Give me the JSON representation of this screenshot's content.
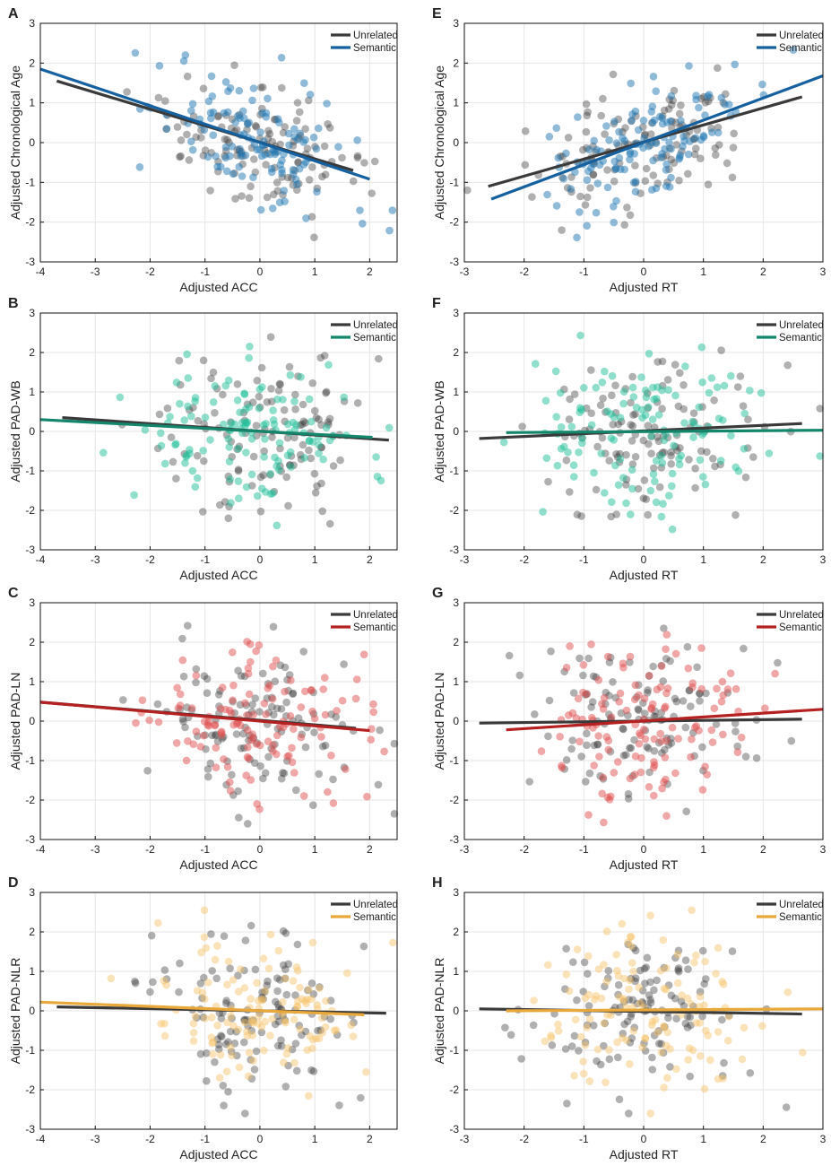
{
  "colors": {
    "unrelated": "#3a3a3a",
    "blue": "#1f77b4",
    "blue_line": "#15609e",
    "teal": "#1fbf9a",
    "teal_line": "#13866c",
    "red": "#e05050",
    "red_line": "#b52020",
    "yellow": "#f6c063",
    "yellow_line": "#e8a83a",
    "grid": "#e6e6e6"
  },
  "chart_data": [
    {
      "panel": "A",
      "type": "scatter",
      "xlabel": "Adjusted ACC",
      "ylabel": "Adjusted Chronological Age",
      "xlim": [
        -4,
        2.5
      ],
      "ylim": [
        -3,
        3
      ],
      "xticks": [
        -4,
        -3,
        -2,
        -1,
        0,
        1,
        2
      ],
      "yticks": [
        -3,
        -2,
        -1,
        0,
        1,
        2,
        3
      ],
      "legend": [
        "Unrelated",
        "Semantic"
      ],
      "semantic_color": "blue",
      "semantic_line_color": "blue_line",
      "seed": 11,
      "series": [
        {
          "name": "Unrelated",
          "n": 125,
          "slope": -0.42,
          "intercept": 0.0,
          "x_mean": 0.0,
          "x_sd": 0.95,
          "noise": 0.8,
          "fit": {
            "x": [
              -3.7,
              1.7
            ],
            "y": [
              1.55,
              -0.7
            ]
          }
        },
        {
          "name": "Semantic",
          "n": 125,
          "slope": -0.46,
          "intercept": 0.0,
          "x_mean": 0.0,
          "x_sd": 0.95,
          "noise": 0.8,
          "fit": {
            "x": [
              -4.0,
              2.0
            ],
            "y": [
              1.85,
              -0.92
            ]
          }
        }
      ]
    },
    {
      "panel": "E",
      "type": "scatter",
      "xlabel": "Adjusted RT",
      "ylabel": "Adjusted Chronological Age",
      "xlim": [
        -3,
        3
      ],
      "ylim": [
        -3,
        3
      ],
      "xticks": [
        -3,
        -2,
        -1,
        0,
        1,
        2,
        3
      ],
      "yticks": [
        -3,
        -2,
        -1,
        0,
        1,
        2,
        3
      ],
      "legend": [
        "Unrelated",
        "Semantic"
      ],
      "semantic_color": "blue",
      "semantic_line_color": "blue_line",
      "seed": 21,
      "series": [
        {
          "name": "Unrelated",
          "n": 125,
          "slope": 0.42,
          "intercept": 0.0,
          "x_mean": 0.0,
          "x_sd": 0.9,
          "noise": 0.8,
          "fit": {
            "x": [
              -2.6,
              2.65
            ],
            "y": [
              -1.1,
              1.15
            ]
          }
        },
        {
          "name": "Semantic",
          "n": 125,
          "slope": 0.55,
          "intercept": 0.0,
          "x_mean": 0.0,
          "x_sd": 0.9,
          "noise": 0.8,
          "fit": {
            "x": [
              -2.55,
              3.0
            ],
            "y": [
              -1.42,
              1.68
            ]
          }
        }
      ]
    },
    {
      "panel": "B",
      "type": "scatter",
      "xlabel": "Adjusted ACC",
      "ylabel": "Adjusted PAD-WB",
      "xlim": [
        -4,
        2.5
      ],
      "ylim": [
        -3,
        3
      ],
      "xticks": [
        -4,
        -3,
        -2,
        -1,
        0,
        1,
        2
      ],
      "yticks": [
        -3,
        -2,
        -1,
        0,
        1,
        2,
        3
      ],
      "legend": [
        "Unrelated",
        "Semantic"
      ],
      "semantic_color": "teal",
      "semantic_line_color": "teal_line",
      "seed": 31,
      "series": [
        {
          "name": "Unrelated",
          "n": 125,
          "slope": -0.09,
          "intercept": 0.0,
          "x_mean": 0.0,
          "x_sd": 0.95,
          "noise": 1.0,
          "fit": {
            "x": [
              -3.6,
              2.35
            ],
            "y": [
              0.35,
              -0.22
            ]
          }
        },
        {
          "name": "Semantic",
          "n": 125,
          "slope": -0.07,
          "intercept": 0.0,
          "x_mean": 0.0,
          "x_sd": 0.95,
          "noise": 1.0,
          "fit": {
            "x": [
              -4.0,
              2.05
            ],
            "y": [
              0.3,
              -0.15
            ]
          }
        }
      ]
    },
    {
      "panel": "F",
      "type": "scatter",
      "xlabel": "Adjusted RT",
      "ylabel": "Adjusted PAD-WB",
      "xlim": [
        -3,
        3
      ],
      "ylim": [
        -3,
        3
      ],
      "xticks": [
        -3,
        -2,
        -1,
        0,
        1,
        2,
        3
      ],
      "yticks": [
        -3,
        -2,
        -1,
        0,
        1,
        2,
        3
      ],
      "legend": [
        "Unrelated",
        "Semantic"
      ],
      "semantic_color": "teal",
      "semantic_line_color": "teal_line",
      "seed": 41,
      "series": [
        {
          "name": "Unrelated",
          "n": 125,
          "slope": 0.07,
          "intercept": 0.0,
          "x_mean": 0.0,
          "x_sd": 0.9,
          "noise": 1.0,
          "fit": {
            "x": [
              -2.75,
              2.65
            ],
            "y": [
              -0.18,
              0.2
            ]
          }
        },
        {
          "name": "Semantic",
          "n": 125,
          "slope": 0.01,
          "intercept": 0.0,
          "x_mean": 0.0,
          "x_sd": 0.9,
          "noise": 1.0,
          "fit": {
            "x": [
              -2.3,
              3.0
            ],
            "y": [
              -0.03,
              0.03
            ]
          }
        }
      ]
    },
    {
      "panel": "C",
      "type": "scatter",
      "xlabel": "Adjusted ACC",
      "ylabel": "Adjusted PAD-LN",
      "xlim": [
        -4,
        2.5
      ],
      "ylim": [
        -3,
        3
      ],
      "xticks": [
        -4,
        -3,
        -2,
        -1,
        0,
        1,
        2
      ],
      "yticks": [
        -3,
        -2,
        -1,
        0,
        1,
        2,
        3
      ],
      "legend": [
        "Unrelated",
        "Semantic"
      ],
      "semantic_color": "red",
      "semantic_line_color": "red_line",
      "seed": 51,
      "series": [
        {
          "name": "Unrelated",
          "n": 125,
          "slope": -0.1,
          "intercept": 0.0,
          "x_mean": 0.0,
          "x_sd": 0.95,
          "noise": 0.95,
          "fit": {
            "x": [
              -4.0,
              1.75
            ],
            "y": [
              0.48,
              -0.18
            ]
          }
        },
        {
          "name": "Semantic",
          "n": 125,
          "slope": -0.12,
          "intercept": 0.0,
          "x_mean": 0.0,
          "x_sd": 0.95,
          "noise": 0.95,
          "fit": {
            "x": [
              -4.0,
              2.0
            ],
            "y": [
              0.48,
              -0.24
            ]
          }
        }
      ]
    },
    {
      "panel": "G",
      "type": "scatter",
      "xlabel": "Adjusted RT",
      "ylabel": "Adjusted PAD-LN",
      "xlim": [
        -3,
        3
      ],
      "ylim": [
        -3,
        3
      ],
      "xticks": [
        -3,
        -2,
        -1,
        0,
        1,
        2,
        3
      ],
      "yticks": [
        -3,
        -2,
        -1,
        0,
        1,
        2,
        3
      ],
      "legend": [
        "Unrelated",
        "Semantic"
      ],
      "semantic_color": "red",
      "semantic_line_color": "red_line",
      "seed": 61,
      "series": [
        {
          "name": "Unrelated",
          "n": 125,
          "slope": 0.02,
          "intercept": 0.0,
          "x_mean": 0.0,
          "x_sd": 0.9,
          "noise": 0.95,
          "fit": {
            "x": [
              -2.75,
              2.65
            ],
            "y": [
              -0.05,
              0.05
            ]
          }
        },
        {
          "name": "Semantic",
          "n": 125,
          "slope": 0.1,
          "intercept": 0.0,
          "x_mean": 0.0,
          "x_sd": 0.9,
          "noise": 0.95,
          "fit": {
            "x": [
              -2.3,
              3.0
            ],
            "y": [
              -0.22,
              0.3
            ]
          }
        }
      ]
    },
    {
      "panel": "D",
      "type": "scatter",
      "xlabel": "Adjusted ACC",
      "ylabel": "Adjusted PAD-NLR",
      "xlim": [
        -4,
        2.5
      ],
      "ylim": [
        -3,
        3
      ],
      "xticks": [
        -4,
        -3,
        -2,
        -1,
        0,
        1,
        2
      ],
      "yticks": [
        -3,
        -2,
        -1,
        0,
        1,
        2,
        3
      ],
      "legend": [
        "Unrelated",
        "Semantic"
      ],
      "semantic_color": "yellow",
      "semantic_line_color": "yellow_line",
      "seed": 71,
      "series": [
        {
          "name": "Unrelated",
          "n": 125,
          "slope": -0.03,
          "intercept": 0.0,
          "x_mean": 0.0,
          "x_sd": 0.95,
          "noise": 1.0,
          "fit": {
            "x": [
              -3.7,
              2.3
            ],
            "y": [
              0.1,
              -0.06
            ]
          }
        },
        {
          "name": "Semantic",
          "n": 125,
          "slope": -0.07,
          "intercept": 0.0,
          "x_mean": 0.0,
          "x_sd": 0.95,
          "noise": 1.0,
          "fit": {
            "x": [
              -4.0,
              1.9
            ],
            "y": [
              0.22,
              -0.1
            ]
          }
        }
      ]
    },
    {
      "panel": "H",
      "type": "scatter",
      "xlabel": "Adjusted RT",
      "ylabel": "Adjusted PAD-NLR",
      "xlim": [
        -3,
        3
      ],
      "ylim": [
        -3,
        3
      ],
      "xticks": [
        -3,
        -2,
        -1,
        0,
        1,
        2,
        3
      ],
      "yticks": [
        -3,
        -2,
        -1,
        0,
        1,
        2,
        3
      ],
      "legend": [
        "Unrelated",
        "Semantic"
      ],
      "semantic_color": "yellow",
      "semantic_line_color": "yellow_line",
      "seed": 81,
      "series": [
        {
          "name": "Unrelated",
          "n": 125,
          "slope": -0.02,
          "intercept": 0.0,
          "x_mean": 0.0,
          "x_sd": 0.9,
          "noise": 1.0,
          "fit": {
            "x": [
              -2.75,
              2.65
            ],
            "y": [
              0.05,
              -0.08
            ]
          }
        },
        {
          "name": "Semantic",
          "n": 125,
          "slope": 0.01,
          "intercept": 0.0,
          "x_mean": 0.0,
          "x_sd": 0.9,
          "noise": 1.0,
          "fit": {
            "x": [
              -2.3,
              3.0
            ],
            "y": [
              0.0,
              0.05
            ]
          }
        }
      ]
    }
  ]
}
